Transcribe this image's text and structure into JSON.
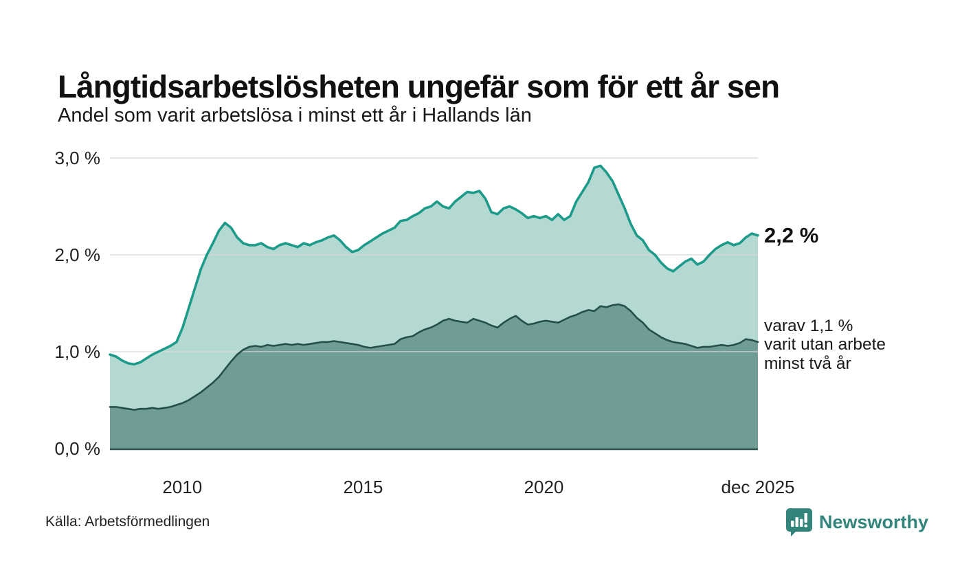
{
  "header": {
    "title": "Långtidsarbetslösheten ungefär som för ett år sen",
    "subtitle": "Andel som varit arbetslösa i minst ett år i Hallands län"
  },
  "chart_data": {
    "type": "area",
    "title": "Långtidsarbetslösheten ungefär som för ett år sen",
    "subtitle": "Andel som varit arbetslösa i minst ett år i Hallands län",
    "x_start": 2008.0,
    "x_end": 2025.92,
    "ylim": [
      0,
      3.0
    ],
    "grid": true,
    "y_ticks": [
      {
        "value": 3.0,
        "label": "3,0 %"
      },
      {
        "value": 2.0,
        "label": "2,0 %"
      },
      {
        "value": 1.0,
        "label": "1,0 %"
      },
      {
        "value": 0.0,
        "label": "0,0 %"
      }
    ],
    "x_ticks": [
      {
        "value": 2010,
        "label": "2010"
      },
      {
        "value": 2015,
        "label": "2015"
      },
      {
        "value": 2020,
        "label": "2020"
      },
      {
        "value": 2025.92,
        "label": "dec 2025"
      }
    ],
    "series": [
      {
        "name": "Andel som varit arbetslösa i minst ett år",
        "line_color": "#1d9b8a",
        "fill_color": "#b4d9d2",
        "end_value_label": "2,2 %",
        "end_value": 2.2,
        "values": [
          0.97,
          0.95,
          0.91,
          0.88,
          0.87,
          0.89,
          0.93,
          0.97,
          1.0,
          1.03,
          1.06,
          1.1,
          1.25,
          1.45,
          1.65,
          1.85,
          2.0,
          2.12,
          2.25,
          2.33,
          2.28,
          2.18,
          2.12,
          2.1,
          2.1,
          2.12,
          2.08,
          2.06,
          2.1,
          2.12,
          2.1,
          2.08,
          2.12,
          2.1,
          2.13,
          2.15,
          2.18,
          2.2,
          2.15,
          2.08,
          2.03,
          2.05,
          2.1,
          2.14,
          2.18,
          2.22,
          2.25,
          2.28,
          2.35,
          2.36,
          2.4,
          2.43,
          2.48,
          2.5,
          2.55,
          2.5,
          2.48,
          2.55,
          2.6,
          2.65,
          2.64,
          2.66,
          2.58,
          2.44,
          2.42,
          2.48,
          2.5,
          2.47,
          2.43,
          2.38,
          2.4,
          2.38,
          2.4,
          2.36,
          2.42,
          2.36,
          2.4,
          2.55,
          2.65,
          2.75,
          2.9,
          2.92,
          2.85,
          2.76,
          2.62,
          2.48,
          2.32,
          2.2,
          2.15,
          2.05,
          2.0,
          1.92,
          1.86,
          1.83,
          1.88,
          1.93,
          1.96,
          1.9,
          1.93,
          2.0,
          2.06,
          2.1,
          2.13,
          2.1,
          2.12,
          2.18,
          2.22,
          2.2
        ]
      },
      {
        "name": "varav utan arbete minst två år",
        "line_color": "#254f49",
        "fill_color": "#6f9c95",
        "end_value_label": "varav 1,1 % varit utan arbete minst två år",
        "end_value": 1.1,
        "values": [
          0.43,
          0.43,
          0.42,
          0.41,
          0.4,
          0.41,
          0.41,
          0.42,
          0.41,
          0.42,
          0.43,
          0.45,
          0.47,
          0.5,
          0.54,
          0.58,
          0.63,
          0.68,
          0.74,
          0.82,
          0.9,
          0.97,
          1.02,
          1.05,
          1.06,
          1.05,
          1.07,
          1.06,
          1.07,
          1.08,
          1.07,
          1.08,
          1.07,
          1.08,
          1.09,
          1.1,
          1.1,
          1.11,
          1.1,
          1.09,
          1.08,
          1.07,
          1.05,
          1.04,
          1.05,
          1.06,
          1.07,
          1.08,
          1.13,
          1.15,
          1.16,
          1.2,
          1.23,
          1.25,
          1.28,
          1.32,
          1.34,
          1.32,
          1.31,
          1.3,
          1.34,
          1.32,
          1.3,
          1.27,
          1.25,
          1.3,
          1.34,
          1.37,
          1.32,
          1.28,
          1.29,
          1.31,
          1.32,
          1.31,
          1.3,
          1.33,
          1.36,
          1.38,
          1.41,
          1.43,
          1.42,
          1.47,
          1.46,
          1.48,
          1.49,
          1.47,
          1.42,
          1.35,
          1.3,
          1.23,
          1.19,
          1.15,
          1.12,
          1.1,
          1.09,
          1.08,
          1.06,
          1.04,
          1.05,
          1.05,
          1.06,
          1.07,
          1.06,
          1.07,
          1.09,
          1.13,
          1.12,
          1.1
        ]
      }
    ],
    "colors": {
      "gridline": "#d8d8d8",
      "baseline": "#2b544e",
      "axis_text": "#222222"
    }
  },
  "annotations": {
    "value_label": "2,2 %",
    "note_line1": "varav 1,1 %",
    "note_line2": "varit utan arbete",
    "note_line3": "minst två år"
  },
  "footer": {
    "source": "Källa: Arbetsförmedlingen",
    "brand": "Newsworthy",
    "brand_color": "#33857b"
  }
}
